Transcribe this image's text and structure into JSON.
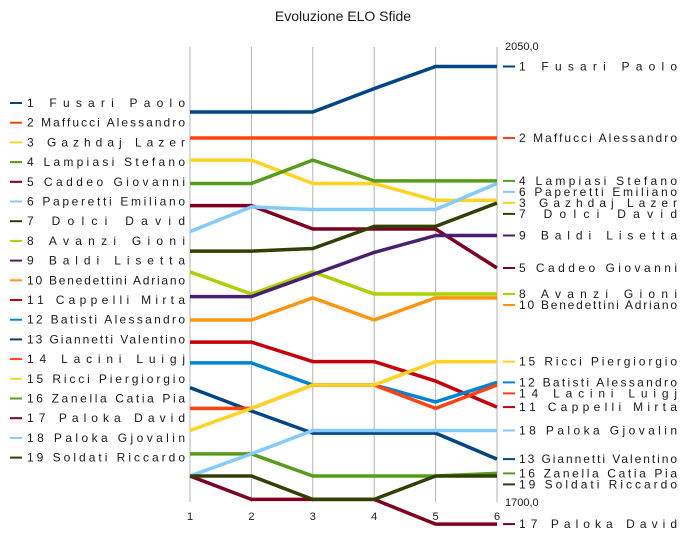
{
  "chart_data": {
    "type": "line",
    "title": "Evoluzione ELO Sfide",
    "x": [
      "1",
      "2",
      "3",
      "4",
      "5",
      "6"
    ],
    "ylim": [
      1700,
      2050
    ],
    "y_tick_labels": [
      "2050,0",
      "1700,0"
    ],
    "grid": "vertical",
    "legend_position": "left",
    "series": [
      {
        "name": "1 Fusari Paolo",
        "label": "1 Fusari Paolo",
        "color": "#004586",
        "values": [
          2000,
          2000,
          2000,
          2018,
          2035,
          2035
        ]
      },
      {
        "name": "2 Maffucci Alessandro",
        "label": "2 Maffucci Alessandro",
        "color": "#ff420e",
        "values": [
          1980,
          1980,
          1980,
          1980,
          1980,
          1980
        ]
      },
      {
        "name": "3 Gazhdaj Lazer",
        "label": "3 Gazhdaj Lazer",
        "color": "#ffd320",
        "values": [
          1963,
          1963,
          1945,
          1945,
          1932,
          1932
        ]
      },
      {
        "name": "4 Lampiasi Stefano",
        "label": "4 Lampiasi Stefano",
        "color": "#579d1c",
        "values": [
          1945,
          1945,
          1963,
          1947,
          1947,
          1947
        ]
      },
      {
        "name": "5 Caddeo Giovanni",
        "label": "5 Caddeo Giovanni",
        "color": "#7e0021",
        "values": [
          1928,
          1928,
          1910,
          1910,
          1910,
          1880
        ]
      },
      {
        "name": "6 Paperetti Emiliano",
        "label": "6 Paperetti Emiliano",
        "color": "#83caff",
        "values": [
          1908,
          1927,
          1925,
          1925,
          1925,
          1945
        ]
      },
      {
        "name": "7 Dolci David",
        "label": "7 Dolci David",
        "color": "#314004",
        "values": [
          1893,
          1893,
          1895,
          1912,
          1912,
          1930
        ]
      },
      {
        "name": "8 Avanzi Gioni",
        "label": "8 Avanzi Gioni",
        "color": "#aecf00",
        "values": [
          1877,
          1860,
          1877,
          1860,
          1860,
          1860
        ]
      },
      {
        "name": "9 Baldi Lisetta",
        "label": "9 Baldi Lisetta",
        "color": "#4b1f6f",
        "values": [
          1858,
          1858,
          1875,
          1892,
          1905,
          1905
        ]
      },
      {
        "name": "10 Benedettini Adriano",
        "label": "10 Benedettini Adriano",
        "color": "#ff950e",
        "values": [
          1840,
          1840,
          1857,
          1840,
          1857,
          1857
        ]
      },
      {
        "name": "11 Cappelli Mirta",
        "label": "11 Cappelli Mirta",
        "color": "#c5000b",
        "values": [
          1823,
          1823,
          1808,
          1808,
          1793,
          1773
        ]
      },
      {
        "name": "12 Batisti Alessandro",
        "label": "12 Batisti Alessandro",
        "color": "#0084d1",
        "values": [
          1807,
          1807,
          1790,
          1790,
          1777,
          1792
        ]
      },
      {
        "name": "13 Giannetti Valentino",
        "label": "13 Giannetti Valentino",
        "color": "#004586",
        "values": [
          1788,
          1770,
          1753,
          1753,
          1753,
          1733
        ]
      },
      {
        "name": "14 Lacini Luigj",
        "label": "14 Lacini Luigj",
        "color": "#ff420e",
        "values": [
          1772,
          1772,
          1790,
          1790,
          1772,
          1790
        ]
      },
      {
        "name": "15 Ricci Piergiorgio",
        "label": "15 Ricci Piergiorgio",
        "color": "#ffd320",
        "values": [
          1755,
          1772,
          1790,
          1790,
          1808,
          1808
        ]
      },
      {
        "name": "16 Zanella Catia Pia",
        "label": "16 Zanella Catia Pia",
        "color": "#579d1c",
        "values": [
          1737,
          1737,
          1720,
          1720,
          1720,
          1722
        ]
      },
      {
        "name": "17 Paloka David",
        "label": "17 Paloka David",
        "color": "#7e0021",
        "values": [
          1720,
          1702,
          1702,
          1702,
          1683,
          1683
        ]
      },
      {
        "name": "18 Paloka Gjovalin",
        "label": "18 Paloka Gjovalin",
        "color": "#83caff",
        "values": [
          1720,
          1737,
          1755,
          1755,
          1755,
          1755
        ]
      },
      {
        "name": "19 Soldati Riccardo",
        "label": "19 Soldati Riccardo",
        "color": "#314004",
        "values": [
          1720,
          1720,
          1702,
          1702,
          1720,
          1720
        ]
      }
    ]
  }
}
